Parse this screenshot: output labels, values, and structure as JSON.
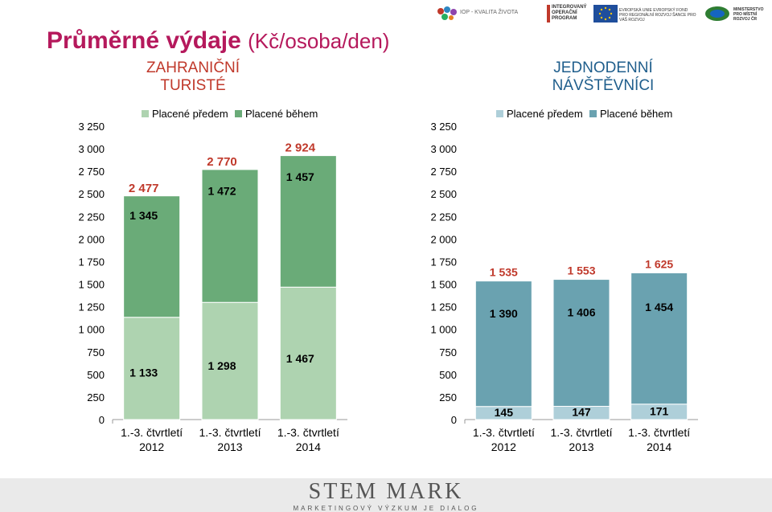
{
  "title": {
    "main": "Průměrné výdaje",
    "sub": "(Kč/osoba/den)"
  },
  "logos": {
    "iop": "IOP - KVALITA ŽIVOTA",
    "integrovany": "INTEGROVANÝ OPERAČNÍ PROGRAM",
    "eu": "EVROPSKÁ UNIE EVROPSKÝ FOND PRO REGIONÁLNÍ ROZVOJ ŠANCE PRO VÁŠ ROZVOJ",
    "ministry": "MINISTERSTVO PRO MÍSTNÍ ROZVOJ ČR"
  },
  "footer": {
    "brand": "STEM MARK",
    "tagline": "MARKETINGOVÝ VÝZKUM JE DIALOG"
  },
  "colors": {
    "left_before": "#aed3b0",
    "left_during": "#6aab78",
    "right_before": "#aecfd9",
    "right_during": "#6aa2b0",
    "total_label": "#c0392b"
  },
  "chart_data": [
    {
      "type": "bar",
      "stacked": true,
      "title": "ZAHRANIČNÍ TURISTÉ",
      "categories": [
        "1.-3. čtvrtletí 2012",
        "1.-3. čtvrtletí 2013",
        "1.-3. čtvrtletí 2014"
      ],
      "category_lines": [
        [
          "1.-3. čtvrtletí",
          "2012"
        ],
        [
          "1.-3. čtvrtletí",
          "2013"
        ],
        [
          "1.-3. čtvrtletí",
          "2014"
        ]
      ],
      "series": [
        {
          "name": "Placené předem",
          "values": [
            1133,
            1298,
            1467
          ]
        },
        {
          "name": "Placené během",
          "values": [
            1345,
            1472,
            1457
          ]
        }
      ],
      "value_labels": [
        [
          "1 133",
          "1 298",
          "1 467"
        ],
        [
          "1 345",
          "1 472",
          "1 457"
        ]
      ],
      "totals": [
        2477,
        2770,
        2924
      ],
      "total_labels": [
        "2 477",
        "2 770",
        "2 924"
      ],
      "ylim": [
        0,
        3250
      ],
      "yticks": [
        0,
        250,
        500,
        750,
        1000,
        1250,
        1500,
        1750,
        2000,
        2250,
        2500,
        2750,
        3000,
        3250
      ],
      "ytick_labels": [
        "0",
        "250",
        "500",
        "750",
        "1 000",
        "1 250",
        "1 500",
        "1 750",
        "2 000",
        "2 250",
        "2 500",
        "2 750",
        "3 000",
        "3 250"
      ],
      "legend": "top"
    },
    {
      "type": "bar",
      "stacked": true,
      "title": "JEDNODENNÍ NÁVŠTĚVNÍCI",
      "categories": [
        "1.-3. čtvrtletí 2012",
        "1.-3. čtvrtletí 2013",
        "1.-3. čtvrtletí 2014"
      ],
      "category_lines": [
        [
          "1.-3. čtvrtletí",
          "2012"
        ],
        [
          "1.-3. čtvrtletí",
          "2013"
        ],
        [
          "1.-3. čtvrtletí",
          "2014"
        ]
      ],
      "series": [
        {
          "name": "Placené předem",
          "values": [
            145,
            147,
            171
          ]
        },
        {
          "name": "Placené během",
          "values": [
            1390,
            1406,
            1454
          ]
        }
      ],
      "value_labels": [
        [
          "145",
          "147",
          "171"
        ],
        [
          "1 390",
          "1 406",
          "1 454"
        ]
      ],
      "totals": [
        1535,
        1553,
        1625
      ],
      "total_labels": [
        "1 535",
        "1 553",
        "1 625"
      ],
      "ylim": [
        0,
        3250
      ],
      "yticks": [
        0,
        250,
        500,
        750,
        1000,
        1250,
        1500,
        1750,
        2000,
        2250,
        2500,
        2750,
        3000,
        3250
      ],
      "ytick_labels": [
        "0",
        "250",
        "500",
        "750",
        "1 000",
        "1 250",
        "1 500",
        "1 750",
        "2 000",
        "2 250",
        "2 500",
        "2 750",
        "3 000",
        "3 250"
      ],
      "legend": "top"
    }
  ]
}
